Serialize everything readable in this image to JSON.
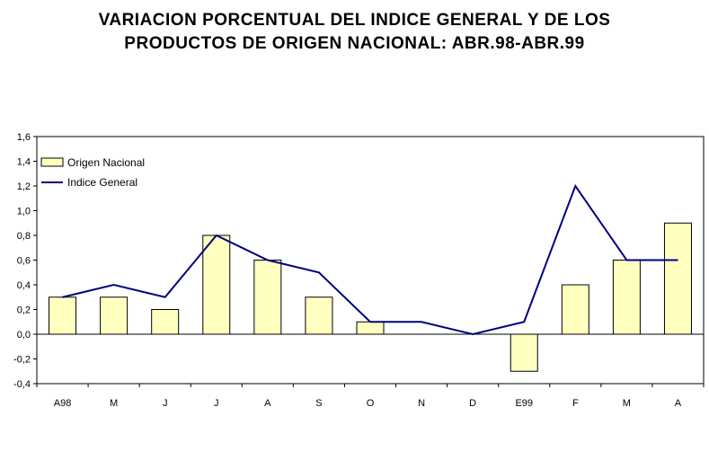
{
  "chart_data": {
    "type": "bar+line",
    "title_lines": [
      "VARIACION PORCENTUAL DEL INDICE GENERAL Y DE LOS",
      "PRODUCTOS DE ORIGEN NACIONAL: ABR.98-ABR.99"
    ],
    "categories": [
      "A98",
      "M",
      "J",
      "J",
      "A",
      "S",
      "O",
      "N",
      "D",
      "E99",
      "F",
      "M",
      "A"
    ],
    "series": [
      {
        "name": "Origen Nacional",
        "kind": "bar",
        "color": "#FFFFC0",
        "values": [
          0.3,
          0.3,
          0.2,
          0.8,
          0.6,
          0.3,
          0.1,
          0.0,
          0.0,
          -0.3,
          0.4,
          0.6,
          0.9
        ]
      },
      {
        "name": "Indice General",
        "kind": "line",
        "color": "#000080",
        "values": [
          0.3,
          0.4,
          0.3,
          0.8,
          0.6,
          0.5,
          0.1,
          0.1,
          0.0,
          0.1,
          1.2,
          0.6,
          0.6
        ]
      }
    ],
    "ylim": [
      -0.4,
      1.6
    ],
    "yticks": [
      "-0,4",
      "-0,2",
      "0,0",
      "0,2",
      "0,4",
      "0,6",
      "0,8",
      "1,0",
      "1,2",
      "1,4",
      "1,6"
    ],
    "grid": false,
    "legend_position": "top-left"
  }
}
